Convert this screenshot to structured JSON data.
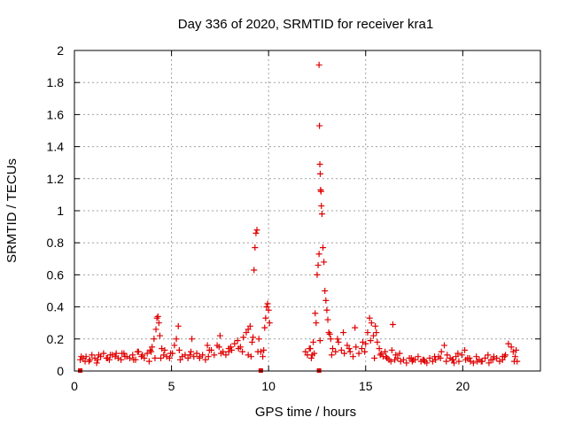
{
  "chart_data": {
    "type": "scatter",
    "title": "Day 336 of 2020, SRMTID for receiver kra1",
    "xlabel": "GPS time / hours",
    "ylabel": "SRMTID / TECUs",
    "xlim": [
      0,
      24
    ],
    "ylim": [
      0,
      2
    ],
    "xticks": [
      0,
      5,
      10,
      15,
      20
    ],
    "yticks": [
      0,
      0.2,
      0.4,
      0.6,
      0.8,
      1,
      1.2,
      1.4,
      1.6,
      1.8,
      2
    ],
    "grid": true,
    "marker": "+",
    "color": "#e00000",
    "series": [
      {
        "name": "SRMTID",
        "x": [
          0.3,
          0.45,
          0.6,
          0.75,
          0.9,
          1.05,
          1.2,
          1.35,
          1.5,
          1.65,
          1.8,
          1.95,
          2.1,
          2.25,
          2.4,
          2.55,
          2.7,
          2.85,
          3.0,
          3.15,
          3.3,
          3.45,
          3.6,
          3.75,
          3.9,
          4.0,
          4.1,
          4.2,
          4.25,
          4.3,
          4.35,
          4.4,
          4.5,
          4.6,
          4.75,
          4.9,
          5.05,
          5.15,
          5.25,
          5.4,
          5.55,
          5.7,
          5.85,
          6.0,
          6.15,
          6.3,
          6.45,
          6.6,
          6.75,
          6.9,
          7.05,
          7.2,
          7.35,
          7.5,
          7.65,
          7.8,
          7.95,
          8.1,
          8.25,
          8.4,
          8.55,
          8.7,
          8.85,
          8.95,
          9.05,
          9.15,
          9.25,
          9.3,
          9.35,
          9.4,
          9.5,
          9.6,
          9.7,
          9.8,
          9.85,
          9.9,
          9.95,
          10.0,
          10.05,
          11.9,
          12.0,
          12.1,
          12.2,
          12.3,
          12.35,
          12.4,
          12.45,
          12.5,
          12.55,
          12.6,
          12.6,
          12.62,
          12.64,
          12.66,
          12.68,
          12.7,
          12.72,
          12.75,
          12.8,
          12.85,
          12.9,
          12.95,
          13.0,
          13.05,
          13.1,
          13.2,
          13.3,
          13.45,
          13.6,
          13.75,
          13.9,
          14.05,
          14.2,
          14.35,
          14.5,
          14.65,
          14.8,
          14.95,
          15.0,
          15.1,
          15.2,
          15.3,
          15.4,
          15.5,
          15.55,
          15.6,
          15.7,
          15.8,
          15.9,
          16.0,
          16.1,
          16.2,
          16.3,
          16.4,
          16.5,
          16.65,
          16.8,
          16.95,
          17.1,
          17.25,
          17.4,
          17.55,
          17.7,
          17.85,
          18.0,
          18.15,
          18.3,
          18.45,
          18.6,
          18.75,
          18.9,
          19.05,
          19.2,
          19.35,
          19.5,
          19.65,
          19.8,
          19.95,
          20.1,
          20.25,
          20.4,
          20.55,
          20.7,
          20.85,
          21.0,
          21.15,
          21.3,
          21.45,
          21.6,
          21.75,
          21.9,
          22.05,
          22.2,
          22.35,
          22.5,
          22.6,
          22.7,
          22.8,
          0.35,
          0.8,
          1.25,
          1.7,
          2.15,
          2.6,
          3.05,
          3.5,
          3.95,
          4.45,
          4.95,
          5.45,
          5.95,
          6.45,
          6.95,
          7.45,
          7.95,
          8.45,
          8.95,
          9.45,
          12.15,
          13.25,
          13.85,
          14.45,
          15.25,
          15.75,
          16.35,
          16.55,
          17.35,
          17.95,
          18.55,
          19.15,
          19.45,
          19.75,
          20.35,
          20.95,
          21.55,
          22.15,
          22.75,
          0.55,
          1.15,
          1.85,
          2.45,
          3.25,
          3.85,
          4.15,
          4.65,
          5.35,
          6.05,
          6.85,
          7.55,
          8.05,
          8.65,
          9.1,
          9.2,
          9.75,
          12.25,
          12.65,
          13.15,
          13.55,
          14.15,
          14.85,
          15.45,
          16.05,
          16.75,
          17.45,
          18.05,
          18.85,
          19.55,
          20.15,
          20.75,
          21.35,
          22.05,
          22.65
        ],
        "y": [
          0.07,
          0.08,
          0.09,
          0.06,
          0.1,
          0.08,
          0.07,
          0.09,
          0.11,
          0.08,
          0.07,
          0.1,
          0.09,
          0.08,
          0.07,
          0.11,
          0.09,
          0.08,
          0.1,
          0.07,
          0.12,
          0.09,
          0.08,
          0.11,
          0.13,
          0.15,
          0.2,
          0.26,
          0.33,
          0.34,
          0.3,
          0.22,
          0.14,
          0.1,
          0.09,
          0.08,
          0.11,
          0.16,
          0.2,
          0.13,
          0.09,
          0.1,
          0.08,
          0.12,
          0.09,
          0.11,
          0.08,
          0.1,
          0.07,
          0.09,
          0.13,
          0.1,
          0.16,
          0.22,
          0.12,
          0.1,
          0.14,
          0.13,
          0.17,
          0.19,
          0.15,
          0.21,
          0.24,
          0.26,
          0.28,
          0.18,
          0.63,
          0.77,
          0.86,
          0.88,
          0.2,
          0.12,
          0.09,
          0.27,
          0.33,
          0.4,
          0.42,
          0.38,
          0.3,
          0.12,
          0.1,
          0.14,
          0.08,
          0.18,
          0.11,
          0.36,
          0.3,
          0.6,
          0.66,
          0.73,
          1.91,
          1.53,
          1.29,
          1.23,
          1.13,
          1.12,
          1.03,
          0.98,
          0.77,
          0.68,
          0.5,
          0.44,
          0.38,
          0.32,
          0.24,
          0.2,
          0.14,
          0.12,
          0.18,
          0.13,
          0.11,
          0.16,
          0.12,
          0.09,
          0.15,
          0.11,
          0.14,
          0.12,
          0.17,
          0.24,
          0.33,
          0.3,
          0.22,
          0.28,
          0.24,
          0.18,
          0.14,
          0.11,
          0.09,
          0.12,
          0.08,
          0.07,
          0.06,
          0.29,
          0.07,
          0.08,
          0.06,
          0.07,
          0.05,
          0.08,
          0.06,
          0.07,
          0.09,
          0.06,
          0.07,
          0.05,
          0.08,
          0.06,
          0.07,
          0.09,
          0.12,
          0.16,
          0.1,
          0.08,
          0.07,
          0.09,
          0.06,
          0.1,
          0.13,
          0.08,
          0.06,
          0.05,
          0.09,
          0.07,
          0.06,
          0.08,
          0.1,
          0.07,
          0.09,
          0.08,
          0.06,
          0.07,
          0.1,
          0.17,
          0.15,
          0.12,
          0.09,
          0.06,
          0.09,
          0.07,
          0.1,
          0.08,
          0.11,
          0.09,
          0.07,
          0.1,
          0.12,
          0.08,
          0.11,
          0.07,
          0.1,
          0.09,
          0.13,
          0.15,
          0.12,
          0.14,
          0.1,
          0.12,
          0.14,
          0.1,
          0.24,
          0.27,
          0.19,
          0.1,
          0.13,
          0.1,
          0.08,
          0.07,
          0.09,
          0.06,
          0.07,
          0.11,
          0.08,
          0.06,
          0.07,
          0.09,
          0.13,
          0.06,
          0.05,
          0.1,
          0.11,
          0.12,
          0.06,
          0.08,
          0.13,
          0.28,
          0.2,
          0.16,
          0.11,
          0.15,
          0.12,
          0.09,
          0.21,
          0.13,
          0.1,
          0.19,
          0.23,
          0.2,
          0.14,
          0.18,
          0.08,
          0.09,
          0.11,
          0.07,
          0.06,
          0.08,
          0.05,
          0.07,
          0.06,
          0.05,
          0.09,
          0.06
        ]
      }
    ],
    "baseline_markers_x": [
      0.3,
      9.6,
      12.6
    ]
  }
}
